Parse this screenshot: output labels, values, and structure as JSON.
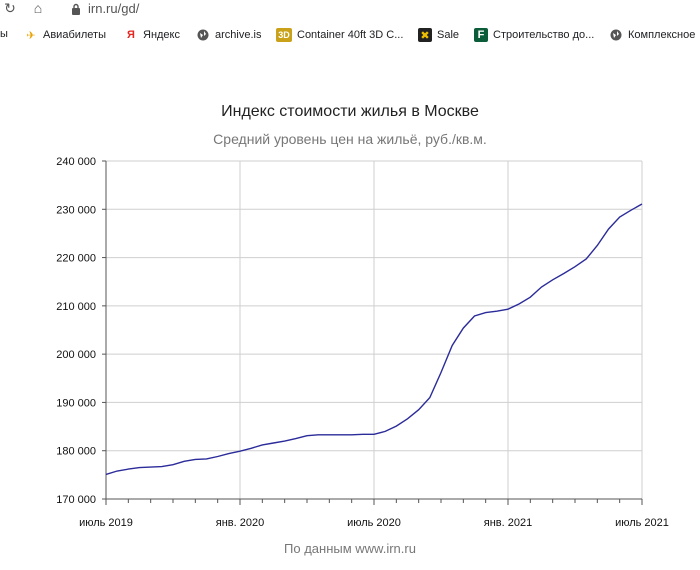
{
  "browser": {
    "url": "irn.ru/gd/",
    "bookmarks": [
      {
        "label": "Авиабилеты",
        "icon": "plane-icon"
      },
      {
        "label": "Яндекс",
        "icon": "yandex-icon"
      },
      {
        "label": "archive.is",
        "icon": "globe-icon"
      },
      {
        "label": "Container 40ft 3D C...",
        "icon": "3d-icon"
      },
      {
        "label": "Sale",
        "icon": "sale-icon"
      },
      {
        "label": "Строительство до...",
        "icon": "f-icon"
      },
      {
        "label": "Комплексное",
        "icon": "globe-icon"
      }
    ],
    "bookmark_cutoff": "ы"
  },
  "chart_data": {
    "type": "line",
    "title": "Индекс стоимости жилья в Москве",
    "subtitle": "Средний уровень цен на жильё, руб./кв.м.",
    "credit": "По данным www.irn.ru",
    "ylim": [
      170000,
      240000
    ],
    "yticks": [
      "240 000",
      "230 000",
      "220 000",
      "210 000",
      "200 000",
      "190 000",
      "180 000",
      "170 000"
    ],
    "ytick_values": [
      240000,
      230000,
      220000,
      210000,
      200000,
      190000,
      180000,
      170000
    ],
    "xlim": [
      0,
      24
    ],
    "xticks": [
      "июль 2019",
      "янв. 2020",
      "июль 2020",
      "янв. 2021",
      "июль 2021"
    ],
    "xtick_values": [
      0,
      6,
      12,
      18,
      24
    ],
    "grid": true,
    "line_color": "#2b2b9a",
    "series": [
      {
        "x": [
          0,
          0.5,
          1,
          1.5,
          2,
          2.5,
          3,
          3.5,
          4,
          4.5,
          5,
          5.5,
          6,
          6.5,
          7,
          7.5,
          8,
          8.5,
          9,
          9.5,
          10,
          10.5,
          11,
          11.5,
          12,
          12.5,
          13,
          13.5,
          14,
          14.5,
          15,
          15.5,
          16,
          16.5,
          17,
          17.5,
          18,
          18.5,
          19,
          19.5,
          20,
          20.5,
          21,
          21.5,
          22,
          22.5,
          23,
          23.5,
          24
        ],
        "values": [
          175100,
          175800,
          176200,
          176500,
          176600,
          176700,
          177100,
          177800,
          178200,
          178300,
          178800,
          179400,
          179900,
          180500,
          181200,
          181600,
          182000,
          182500,
          183100,
          183300,
          183300,
          183300,
          183300,
          183400,
          183400,
          184000,
          185100,
          186600,
          188500,
          191000,
          196200,
          201800,
          205400,
          207900,
          208600,
          208900,
          209300,
          210400,
          211800,
          213900,
          215400,
          216700,
          218100,
          219700,
          222500,
          225900,
          228400,
          229800,
          231100
        ]
      }
    ]
  }
}
